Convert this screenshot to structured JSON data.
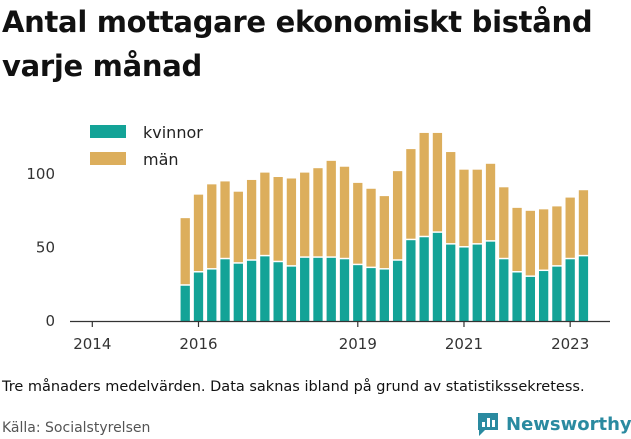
{
  "title": "Antal mottagare ekonomiskt bistånd varje månad",
  "note": "Tre månaders medelvärden. Data saknas ibland på grund av statistikssekretess.",
  "source": "Källa: Socialstyrelsen",
  "brand": {
    "name": "Newsworthy",
    "icon": "newsworthy-chat-chart-icon",
    "color": "#2a8aa0"
  },
  "colors": {
    "kvinnor": "#13a397",
    "man": "#dcae5c",
    "axis": "#333333",
    "grid": "#e6e6e6"
  },
  "chart_data": {
    "type": "bar",
    "stacked": true,
    "xlabel": "",
    "ylabel": "",
    "ylim": [
      0,
      130
    ],
    "yticks": [
      0,
      50,
      100
    ],
    "xlim": [
      2013.58,
      2023.75
    ],
    "xticks": [
      2014,
      2016,
      2019,
      2021,
      2023
    ],
    "grid": false,
    "legend": "top-left",
    "x": [
      2015.75,
      2016.0,
      2016.25,
      2016.5,
      2016.75,
      2017.0,
      2017.25,
      2017.5,
      2017.75,
      2018.0,
      2018.25,
      2018.5,
      2018.75,
      2019.0,
      2019.25,
      2019.5,
      2019.75,
      2020.0,
      2020.25,
      2020.5,
      2020.75,
      2021.0,
      2021.25,
      2021.5,
      2021.75,
      2022.0,
      2022.25,
      2022.5,
      2022.75,
      2023.0,
      2023.25
    ],
    "series": [
      {
        "name": "kvinnor",
        "values": [
          24,
          33,
          35,
          42,
          39,
          41,
          44,
          40,
          37,
          43,
          43,
          43,
          42,
          38,
          36,
          35,
          41,
          55,
          57,
          60,
          52,
          50,
          52,
          54,
          42,
          33,
          30,
          34,
          37,
          42,
          44
        ]
      },
      {
        "name": "män",
        "values": [
          46,
          53,
          58,
          53,
          49,
          55,
          57,
          58,
          60,
          58,
          61,
          66,
          63,
          56,
          54,
          50,
          61,
          62,
          71,
          68,
          63,
          53,
          51,
          53,
          49,
          44,
          45,
          42,
          41,
          42,
          45
        ]
      }
    ]
  }
}
